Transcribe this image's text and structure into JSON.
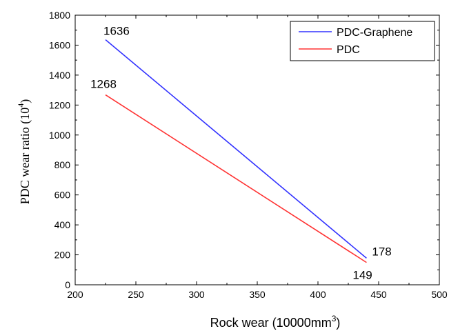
{
  "chart_data": {
    "type": "line",
    "xlabel": "Rock wear (10000mm",
    "xlabel_sup": "3",
    "xlabel_close": ")",
    "ylabel": "PDC  wear ratio (10",
    "ylabel_sup": "4",
    "ylabel_close": ")",
    "xlim": [
      200,
      500
    ],
    "ylim": [
      0,
      1800
    ],
    "x_ticks": [
      200,
      250,
      300,
      350,
      400,
      450,
      500
    ],
    "y_ticks": [
      0,
      200,
      400,
      600,
      800,
      1000,
      1200,
      1400,
      1600,
      1800
    ],
    "legend_position": "top-right",
    "series": [
      {
        "name": "PDC-Graphene",
        "color": "#3333ff",
        "points": [
          {
            "x": 225,
            "y": 1636,
            "label": "1636"
          },
          {
            "x": 440,
            "y": 178,
            "label": "178"
          }
        ]
      },
      {
        "name": "PDC",
        "color": "#ff3333",
        "points": [
          {
            "x": 225,
            "y": 1268,
            "label": "1268"
          },
          {
            "x": 440,
            "y": 149,
            "label": "149"
          }
        ]
      }
    ]
  }
}
